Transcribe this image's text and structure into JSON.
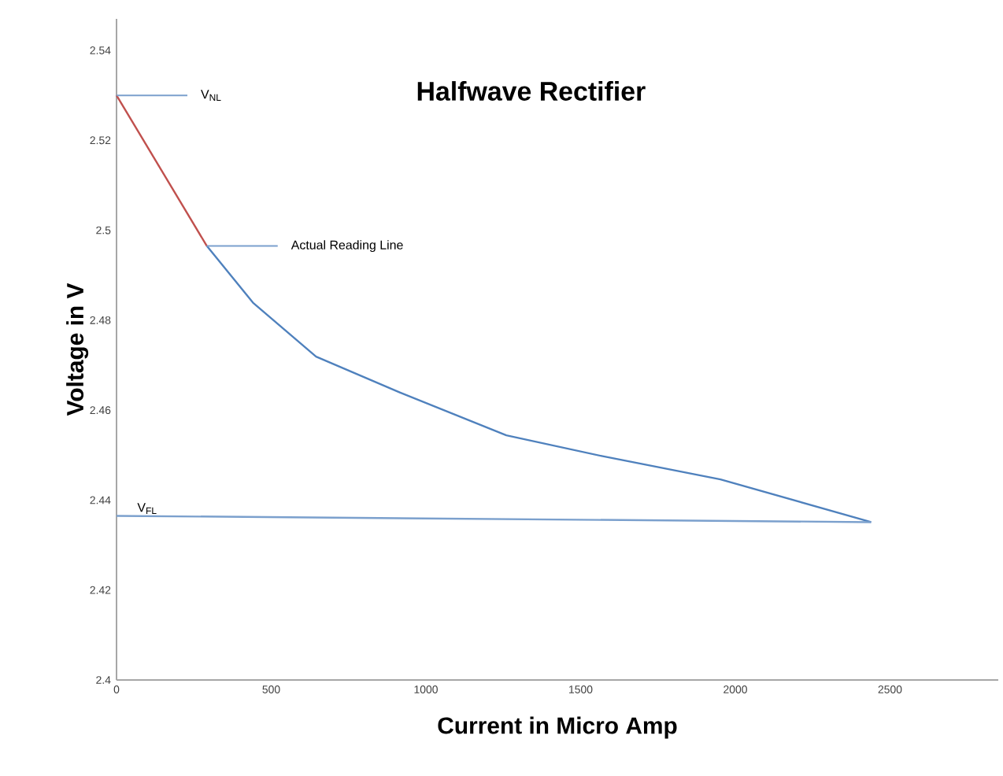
{
  "chart_data": {
    "type": "line",
    "title": "Halfwave Rectifier",
    "xlabel": "Current in Micro Amp",
    "ylabel": "Voltage in V",
    "series": [
      {
        "color": "#c0504d",
        "x": [
          0,
          292
        ],
        "values": [
          2.53,
          2.4965
        ]
      },
      {
        "color": "#4f81bd",
        "x": [
          292,
          441,
          645,
          917,
          1260,
          1568,
          1952,
          2439
        ],
        "values": [
          2.4965,
          2.4839,
          2.4719,
          2.4639,
          2.4544,
          2.4498,
          2.4446,
          2.4351
        ]
      },
      {
        "name": "V$_{FL}$",
        "color": "#7ba0cd",
        "x": [
          0,
          2439
        ],
        "values": [
          2.4365,
          2.4351
        ]
      }
    ],
    "annotations": [
      {
        "text": "V$_{NL}$",
        "x": 0,
        "y": 2.53
      },
      {
        "text": "Actual Reading Line",
        "x": 292,
        "y": 2.4965
      }
    ],
    "xlim": [
      0,
      2850
    ],
    "ylim": [
      2.4,
      2.547
    ],
    "xticks": [
      0,
      500,
      1000,
      1500,
      2000,
      2500
    ],
    "yticks": [
      2.4,
      2.42,
      2.44,
      2.46,
      2.48,
      2.5,
      2.52,
      2.54
    ],
    "grid": false,
    "marker": "none",
    "line_style": "solid"
  }
}
